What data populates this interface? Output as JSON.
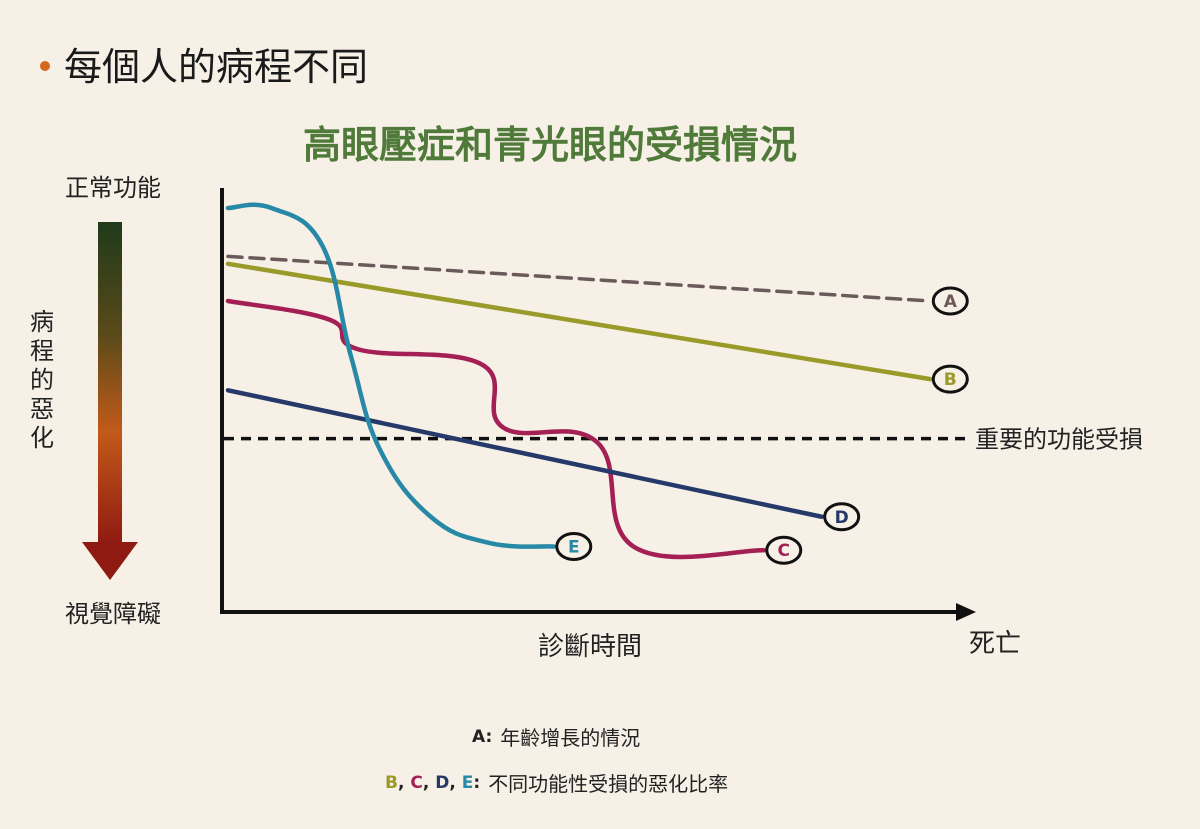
{
  "slide": {
    "bullet": "每個人的病程不同"
  },
  "chart_data": {
    "type": "line",
    "title": "高眼壓症和青光眼的受損情況",
    "y_axis": {
      "top_label": "正常功能",
      "middle_label": "病程的惡化",
      "bottom_label": "視覺障礙",
      "range": [
        0,
        100
      ]
    },
    "x_axis": {
      "label": "診斷時間",
      "end_label": "死亡",
      "range": [
        0,
        100
      ]
    },
    "threshold": {
      "label": "重要的功能受損",
      "value": 38
    },
    "series": [
      {
        "name": "A",
        "style": "dashed",
        "color": "#6b5a5a",
        "x": [
          0,
          97
        ],
        "y": [
          87,
          75
        ]
      },
      {
        "name": "B",
        "style": "solid",
        "color": "#9a9a2a",
        "x": [
          0,
          97
        ],
        "y": [
          85,
          54
        ]
      },
      {
        "name": "C",
        "style": "solid",
        "color": "#a31f54",
        "x": [
          0,
          14,
          18,
          35,
          38,
          51,
          56,
          74
        ],
        "y": [
          75,
          70,
          62,
          58,
          41,
          37,
          9,
          8
        ]
      },
      {
        "name": "D",
        "style": "solid",
        "color": "#253a6a",
        "x": [
          0,
          82
        ],
        "y": [
          51,
          17
        ]
      },
      {
        "name": "E",
        "style": "solid",
        "color": "#2789a6",
        "x": [
          0,
          6,
          13,
          17,
          21,
          28,
          36,
          45
        ],
        "y": [
          100,
          100,
          90,
          60,
          35,
          17,
          10,
          9
        ]
      }
    ],
    "labels": [
      "A",
      "B",
      "C",
      "D",
      "E"
    ]
  },
  "notes": [
    {
      "tag": "A:",
      "text": "年齡增長的情況"
    },
    {
      "tag": "B, C, D, E:",
      "text": "不同功能性受損的惡化比率"
    }
  ],
  "colors": {
    "background": "#f6f0e6",
    "title": "#4f7a3a",
    "bullet": "#d4691e"
  }
}
